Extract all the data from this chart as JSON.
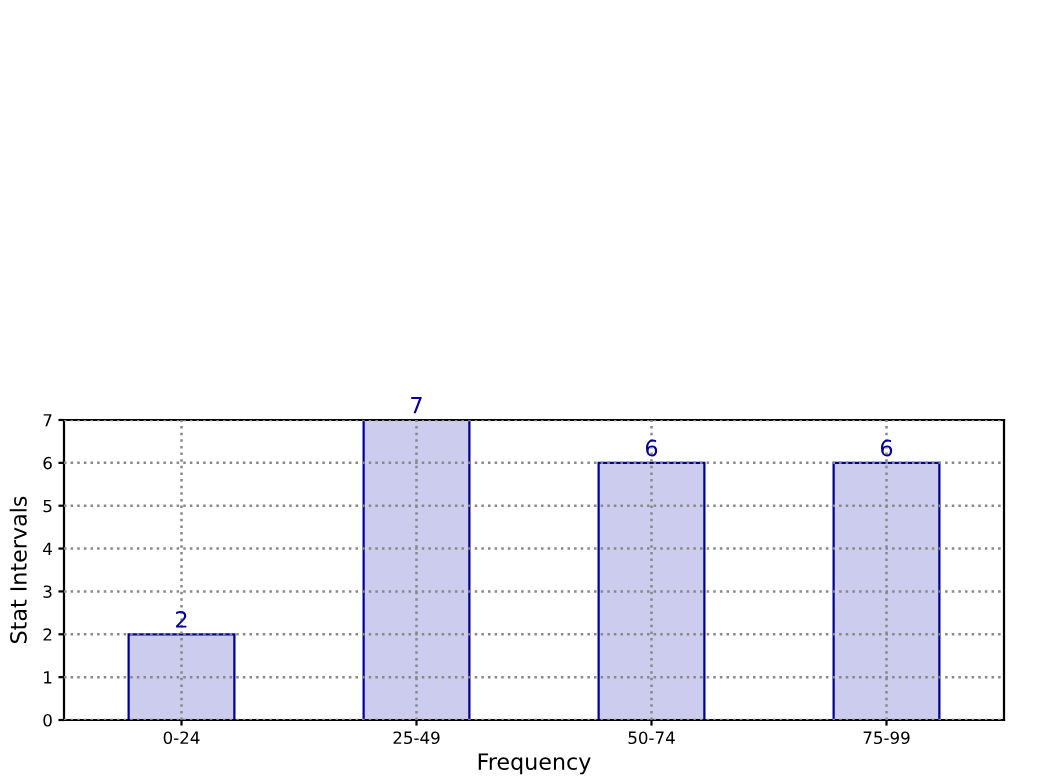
{
  "chart_data": {
    "type": "bar",
    "categories": [
      "0-24",
      "25-49",
      "50-74",
      "75-99"
    ],
    "values": [
      2,
      7,
      6,
      6
    ],
    "color": "#ccccee",
    "xlabel": "Frequency",
    "ylabel": "Stat Intervals",
    "ylim": [
      0,
      7
    ],
    "yticks": [
      0,
      1,
      2,
      3,
      4,
      5,
      6,
      7
    ],
    "grid": true,
    "data_labels": true
  }
}
